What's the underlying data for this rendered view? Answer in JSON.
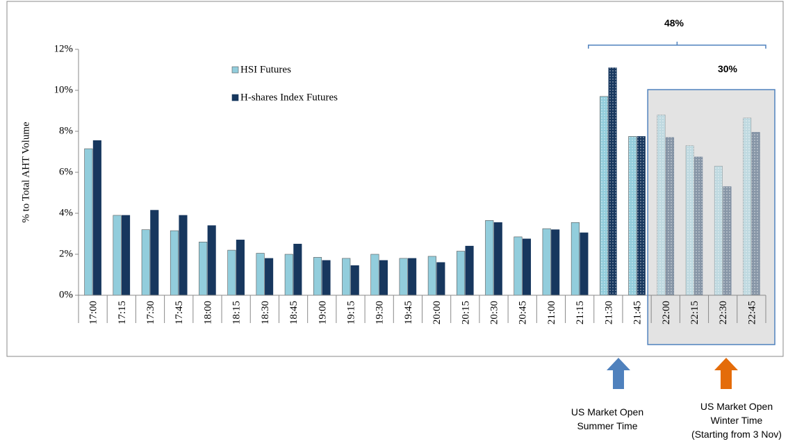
{
  "chart_data": {
    "type": "bar",
    "y_label": "% to Total AHT Volume",
    "categories": [
      "17:00",
      "17:15",
      "17:30",
      "17:45",
      "18:00",
      "18:15",
      "18:30",
      "18:45",
      "19:00",
      "19:15",
      "19:30",
      "19:45",
      "20:00",
      "20:15",
      "20:30",
      "20:45",
      "21:00",
      "21:15",
      "21:30",
      "21:45",
      "22:00",
      "22:15",
      "22:30",
      "22:45"
    ],
    "series": [
      {
        "name": "HSI Futures",
        "color": "#92cddc",
        "values": [
          7.15,
          3.9,
          3.2,
          3.15,
          2.6,
          2.2,
          2.05,
          2.0,
          1.85,
          1.8,
          2.0,
          1.8,
          1.9,
          2.15,
          3.65,
          2.85,
          3.25,
          3.55,
          9.7,
          7.75,
          8.8,
          7.3,
          6.3,
          8.65
        ]
      },
      {
        "name": "H-shares Index Futures",
        "color": "#17375e",
        "values": [
          7.55,
          3.9,
          4.15,
          3.9,
          3.4,
          2.7,
          1.8,
          2.5,
          1.7,
          1.45,
          1.7,
          1.8,
          1.6,
          2.4,
          3.55,
          2.75,
          3.2,
          3.05,
          11.1,
          7.75,
          7.7,
          6.75,
          5.3,
          7.95
        ]
      }
    ],
    "ylim": [
      0,
      12
    ],
    "yticks": [
      {
        "value": 0,
        "label": "0%"
      },
      {
        "value": 2,
        "label": "2%"
      },
      {
        "value": 4,
        "label": "4%"
      },
      {
        "value": 6,
        "label": "6%"
      },
      {
        "value": 8,
        "label": "8%"
      },
      {
        "value": 10,
        "label": "10%"
      },
      {
        "value": 12,
        "label": "12%"
      }
    ],
    "annotations": {
      "total_share": "48%",
      "winter_share": "30%",
      "summer_open": [
        "US Market Open",
        "Summer Time"
      ],
      "winter_open": [
        "US Market Open",
        "Winter Time",
        "(Starting  from 3 Nov)"
      ]
    }
  }
}
